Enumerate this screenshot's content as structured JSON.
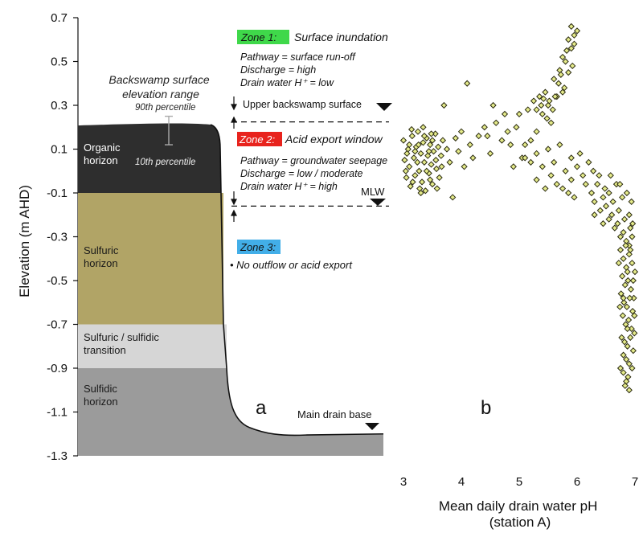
{
  "colors": {
    "organic": "#2e2e2e",
    "sulfuric": "#b1a466",
    "transition": "#d6d6d6",
    "sulfidic": "#9b9b9b",
    "zone1": "#3fd84a",
    "zone2": "#e8231d",
    "zone3": "#42aee8",
    "marker_fill": "#e4ea8a",
    "marker_edge": "#2a2a10"
  },
  "chart_data": [
    {
      "type": "diagram",
      "panel_label": "a",
      "ylabel": "Elevation (m AHD)",
      "ylim": [
        -1.3,
        0.7
      ],
      "yticks": [
        "0.7",
        "0.5",
        "0.3",
        "0.1",
        "-0.1",
        "-0.3",
        "-0.5",
        "-0.7",
        "-0.9",
        "-1.1",
        "-1.3"
      ],
      "layers": [
        {
          "name_lines": [
            "Organic",
            "horizon"
          ],
          "top": 0.22,
          "bottom": -0.1
        },
        {
          "name_lines": [
            "Sulfuric",
            "horizon"
          ],
          "top": -0.1,
          "bottom": -0.7
        },
        {
          "name_lines": [
            "Sulfuric / sulfidic",
            "transition"
          ],
          "top": -0.7,
          "bottom": -0.9
        },
        {
          "name_lines": [
            "Sulfidic",
            "horizon"
          ],
          "top": -0.9,
          "bottom": -1.2
        }
      ],
      "backswamp": {
        "title_lines": [
          "Backswamp surface",
          "elevation range"
        ],
        "p90_label": "90th percentile",
        "p10_label": "10th percentile",
        "p90": 0.25,
        "p10": 0.12
      },
      "zones": [
        {
          "label": "Zone 1:",
          "title": "Surface inundation",
          "lines": [
            "Pathway = surface run-off",
            "Discharge = high",
            "Drain water H⁺ = low"
          ]
        },
        {
          "label": "Zone 2:",
          "title": "Acid export window",
          "lines": [
            "Pathway = groundwater seepage",
            "Discharge = low / moderate",
            "Drain water H⁺ = high"
          ]
        },
        {
          "label": "Zone 3:",
          "title": "",
          "lines": [
            "• No outflow or acid export"
          ]
        }
      ],
      "levels": [
        {
          "label": "Upper backswamp surface",
          "elevation": 0.25
        },
        {
          "label": "MLW",
          "elevation": -0.16
        },
        {
          "label": "Main drain base",
          "elevation": -1.2
        }
      ]
    },
    {
      "type": "scatter",
      "panel_label": "b",
      "xlabel_lines": [
        "Mean daily drain water pH",
        "(station A)"
      ],
      "xlim": [
        3,
        7
      ],
      "xticks": [
        "3",
        "4",
        "5",
        "6",
        "7"
      ],
      "ylim": [
        -1.3,
        0.7
      ],
      "shared_y_with": "a",
      "points": [
        [
          3.0,
          0.14
        ],
        [
          3.02,
          0.05
        ],
        [
          3.05,
          -0.03
        ],
        [
          3.08,
          0.1
        ],
        [
          3.1,
          0.02
        ],
        [
          3.12,
          -0.07
        ],
        [
          3.15,
          0.16
        ],
        [
          3.18,
          0.06
        ],
        [
          3.2,
          -0.02
        ],
        [
          3.22,
          0.11
        ],
        [
          3.25,
          0.18
        ],
        [
          3.27,
          0.0
        ],
        [
          3.3,
          0.08
        ],
        [
          3.32,
          -0.05
        ],
        [
          3.34,
          0.13
        ],
        [
          3.36,
          0.04
        ],
        [
          3.38,
          -0.09
        ],
        [
          3.4,
          0.15
        ],
        [
          3.42,
          0.07
        ],
        [
          3.44,
          -0.01
        ],
        [
          3.46,
          0.12
        ],
        [
          3.48,
          0.03
        ],
        [
          3.5,
          -0.06
        ],
        [
          3.52,
          0.09
        ],
        [
          3.55,
          0.17
        ],
        [
          3.57,
          0.01
        ],
        [
          3.6,
          0.11
        ],
        [
          3.62,
          -0.03
        ],
        [
          3.65,
          0.07
        ],
        [
          3.68,
          0.14
        ],
        [
          3.1,
          0.12
        ],
        [
          3.2,
          0.09
        ],
        [
          3.3,
          -0.1
        ],
        [
          3.4,
          0.0
        ],
        [
          3.5,
          0.14
        ],
        [
          3.06,
          0.08
        ],
        [
          3.16,
          -0.05
        ],
        [
          3.26,
          0.12
        ],
        [
          3.36,
          0.16
        ],
        [
          3.46,
          -0.04
        ],
        [
          3.56,
          0.05
        ],
        [
          3.14,
          0.19
        ],
        [
          3.24,
          0.04
        ],
        [
          3.34,
          0.2
        ],
        [
          3.44,
          0.09
        ],
        [
          3.58,
          -0.08
        ],
        [
          3.66,
          0.02
        ],
        [
          3.04,
          0.0
        ],
        [
          3.28,
          -0.08
        ],
        [
          3.48,
          0.17
        ],
        [
          3.75,
          0.1
        ],
        [
          3.8,
          0.04
        ],
        [
          3.85,
          -0.12
        ],
        [
          3.9,
          0.15
        ],
        [
          3.95,
          0.09
        ],
        [
          4.0,
          0.18
        ],
        [
          4.05,
          0.02
        ],
        [
          4.1,
          0.4
        ],
        [
          4.15,
          0.12
        ],
        [
          4.2,
          0.06
        ],
        [
          3.7,
          0.3
        ],
        [
          4.3,
          0.16
        ],
        [
          4.4,
          0.2
        ],
        [
          4.5,
          0.08
        ],
        [
          4.6,
          0.22
        ],
        [
          4.7,
          0.14
        ],
        [
          4.8,
          0.18
        ],
        [
          4.9,
          0.02
        ],
        [
          5.0,
          0.26
        ],
        [
          5.05,
          0.06
        ],
        [
          4.45,
          0.16
        ],
        [
          4.55,
          0.3
        ],
        [
          4.75,
          0.26
        ],
        [
          4.85,
          0.12
        ],
        [
          4.95,
          0.2
        ],
        [
          5.1,
          0.12
        ],
        [
          5.15,
          0.28
        ],
        [
          5.2,
          0.04
        ],
        [
          5.25,
          0.32
        ],
        [
          5.3,
          0.18
        ],
        [
          5.35,
          0.34
        ],
        [
          5.4,
          0.26
        ],
        [
          5.45,
          0.36
        ],
        [
          5.5,
          0.3
        ],
        [
          5.55,
          0.22
        ],
        [
          5.6,
          0.42
        ],
        [
          5.65,
          0.34
        ],
        [
          5.7,
          0.46
        ],
        [
          5.75,
          0.52
        ],
        [
          5.8,
          0.5
        ],
        [
          5.85,
          0.6
        ],
        [
          5.9,
          0.56
        ],
        [
          5.95,
          0.62
        ],
        [
          6.0,
          0.64
        ],
        [
          5.92,
          0.48
        ],
        [
          5.78,
          0.38
        ],
        [
          5.68,
          0.4
        ],
        [
          5.58,
          0.28
        ],
        [
          5.48,
          0.24
        ],
        [
          5.38,
          0.3
        ],
        [
          5.3,
          0.28
        ],
        [
          5.42,
          0.33
        ],
        [
          5.52,
          0.32
        ],
        [
          5.62,
          0.34
        ],
        [
          5.72,
          0.44
        ],
        [
          5.82,
          0.55
        ],
        [
          5.9,
          0.66
        ],
        [
          5.95,
          0.58
        ],
        [
          5.85,
          0.45
        ],
        [
          5.75,
          0.36
        ],
        [
          5.2,
          0.14
        ],
        [
          5.3,
          0.08
        ],
        [
          5.4,
          0.02
        ],
        [
          5.5,
          0.1
        ],
        [
          5.6,
          0.04
        ],
        [
          5.7,
          0.12
        ],
        [
          5.8,
          0.0
        ],
        [
          5.9,
          -0.04
        ],
        [
          5.55,
          -0.02
        ],
        [
          5.65,
          -0.06
        ],
        [
          5.75,
          -0.08
        ],
        [
          5.85,
          -0.1
        ],
        [
          5.95,
          -0.12
        ],
        [
          5.3,
          -0.04
        ],
        [
          5.1,
          0.06
        ],
        [
          5.45,
          -0.08
        ],
        [
          5.9,
          0.06
        ],
        [
          6.0,
          0.02
        ],
        [
          6.1,
          -0.02
        ],
        [
          6.05,
          0.08
        ],
        [
          6.15,
          -0.06
        ],
        [
          6.2,
          0.04
        ],
        [
          6.25,
          -0.1
        ],
        [
          6.3,
          -0.14
        ],
        [
          6.35,
          -0.06
        ],
        [
          6.4,
          -0.18
        ],
        [
          6.45,
          -0.12
        ],
        [
          6.5,
          -0.16
        ],
        [
          6.55,
          -0.22
        ],
        [
          6.6,
          -0.2
        ],
        [
          6.65,
          -0.26
        ],
        [
          6.7,
          -0.24
        ],
        [
          6.75,
          -0.3
        ],
        [
          6.8,
          -0.28
        ],
        [
          6.85,
          -0.32
        ],
        [
          6.9,
          -0.34
        ],
        [
          6.95,
          -0.3
        ],
        [
          6.3,
          -0.2
        ],
        [
          6.45,
          -0.24
        ],
        [
          6.55,
          -0.1
        ],
        [
          6.62,
          -0.14
        ],
        [
          6.72,
          -0.18
        ],
        [
          6.82,
          -0.22
        ],
        [
          6.92,
          -0.26
        ],
        [
          6.78,
          -0.12
        ],
        [
          6.68,
          -0.06
        ],
        [
          6.58,
          -0.02
        ],
        [
          6.48,
          -0.08
        ],
        [
          6.38,
          -0.02
        ],
        [
          6.28,
          0.0
        ],
        [
          6.75,
          -0.36
        ],
        [
          6.8,
          -0.4
        ],
        [
          6.85,
          -0.44
        ],
        [
          6.9,
          -0.38
        ],
        [
          6.95,
          -0.42
        ],
        [
          7.0,
          -0.46
        ],
        [
          6.78,
          -0.48
        ],
        [
          6.83,
          -0.52
        ],
        [
          6.88,
          -0.5
        ],
        [
          6.93,
          -0.54
        ],
        [
          6.98,
          -0.58
        ],
        [
          6.76,
          -0.56
        ],
        [
          6.81,
          -0.6
        ],
        [
          6.86,
          -0.62
        ],
        [
          6.91,
          -0.58
        ],
        [
          6.96,
          -0.64
        ],
        [
          6.79,
          -0.66
        ],
        [
          6.84,
          -0.7
        ],
        [
          6.89,
          -0.68
        ],
        [
          6.94,
          -0.72
        ],
        [
          6.99,
          -0.74
        ],
        [
          6.77,
          -0.76
        ],
        [
          6.82,
          -0.78
        ],
        [
          6.87,
          -0.8
        ],
        [
          6.92,
          -0.76
        ],
        [
          6.97,
          -0.82
        ],
        [
          6.8,
          -0.84
        ],
        [
          6.85,
          -0.86
        ],
        [
          6.9,
          -0.88
        ],
        [
          6.95,
          -0.9
        ],
        [
          6.75,
          -0.9
        ],
        [
          6.8,
          -0.92
        ],
        [
          6.85,
          -0.96
        ],
        [
          6.88,
          -0.94
        ],
        [
          6.83,
          -0.98
        ],
        [
          6.9,
          -1.0
        ],
        [
          6.87,
          -0.72
        ],
        [
          6.8,
          -0.58
        ],
        [
          6.87,
          -0.46
        ],
        [
          6.92,
          -0.36
        ],
        [
          6.72,
          -0.42
        ],
        [
          6.74,
          -0.62
        ],
        [
          6.97,
          -0.5
        ],
        [
          6.99,
          -0.66
        ],
        [
          6.84,
          -0.34
        ],
        [
          6.9,
          -0.2
        ],
        [
          6.94,
          -0.14
        ],
        [
          6.86,
          -0.1
        ],
        [
          6.74,
          -0.06
        ],
        [
          6.96,
          -0.24
        ]
      ]
    }
  ]
}
